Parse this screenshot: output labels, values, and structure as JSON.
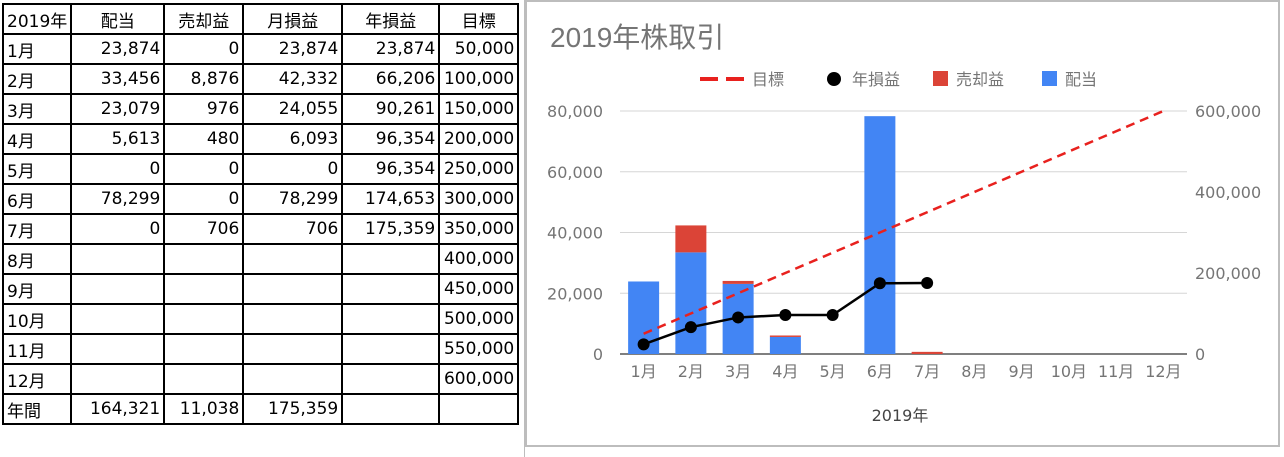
{
  "table": {
    "headers": [
      "2019年",
      "配当",
      "売却益",
      "月損益",
      "年損益",
      "目標"
    ],
    "rows": [
      [
        "1月",
        "23,874",
        "0",
        "23,874",
        "23,874",
        "50,000"
      ],
      [
        "2月",
        "33,456",
        "8,876",
        "42,332",
        "66,206",
        "100,000"
      ],
      [
        "3月",
        "23,079",
        "976",
        "24,055",
        "90,261",
        "150,000"
      ],
      [
        "4月",
        "5,613",
        "480",
        "6,093",
        "96,354",
        "200,000"
      ],
      [
        "5月",
        "0",
        "0",
        "0",
        "96,354",
        "250,000"
      ],
      [
        "6月",
        "78,299",
        "0",
        "78,299",
        "174,653",
        "300,000"
      ],
      [
        "7月",
        "0",
        "706",
        "706",
        "175,359",
        "350,000"
      ],
      [
        "8月",
        "",
        "",
        "",
        "",
        "400,000"
      ],
      [
        "9月",
        "",
        "",
        "",
        "",
        "450,000"
      ],
      [
        "10月",
        "",
        "",
        "",
        "",
        "500,000"
      ],
      [
        "11月",
        "",
        "",
        "",
        "",
        "550,000"
      ],
      [
        "12月",
        "",
        "",
        "",
        "",
        "600,000"
      ],
      [
        "年間",
        "164,321",
        "11,038",
        "175,359",
        "",
        ""
      ]
    ]
  },
  "chart_data": {
    "type": "bar",
    "title": "2019年株取引",
    "xlabel": "2019年",
    "categories": [
      "1月",
      "2月",
      "3月",
      "4月",
      "5月",
      "6月",
      "7月",
      "8月",
      "9月",
      "10月",
      "11月",
      "12月"
    ],
    "legend_position": "top",
    "grid": true,
    "y_left": {
      "range": [
        0,
        80000
      ],
      "ticks": [
        "0",
        "20,000",
        "40,000",
        "60,000",
        "80,000"
      ]
    },
    "y_right": {
      "range": [
        0,
        600000
      ],
      "ticks": [
        "0",
        "200,000",
        "400,000",
        "600,000"
      ]
    },
    "series": [
      {
        "name": "目標",
        "kind": "line",
        "style": "dashed",
        "axis": "right",
        "color": "#e8211e",
        "values": [
          50000,
          100000,
          150000,
          200000,
          250000,
          300000,
          350000,
          400000,
          450000,
          500000,
          550000,
          600000
        ]
      },
      {
        "name": "年損益",
        "kind": "line",
        "marker": "circle",
        "axis": "right",
        "color": "#000000",
        "values": [
          23874,
          66206,
          90261,
          96354,
          96354,
          174653,
          175359,
          null,
          null,
          null,
          null,
          null
        ]
      },
      {
        "name": "売却益",
        "kind": "bar",
        "stacked": true,
        "axis": "left",
        "color": "#db4437",
        "values": [
          0,
          8876,
          976,
          480,
          0,
          0,
          706,
          null,
          null,
          null,
          null,
          null
        ]
      },
      {
        "name": "配当",
        "kind": "bar",
        "stacked": true,
        "axis": "left",
        "color": "#4285f4",
        "values": [
          23874,
          33456,
          23079,
          5613,
          0,
          78299,
          0,
          null,
          null,
          null,
          null,
          null
        ]
      }
    ]
  }
}
